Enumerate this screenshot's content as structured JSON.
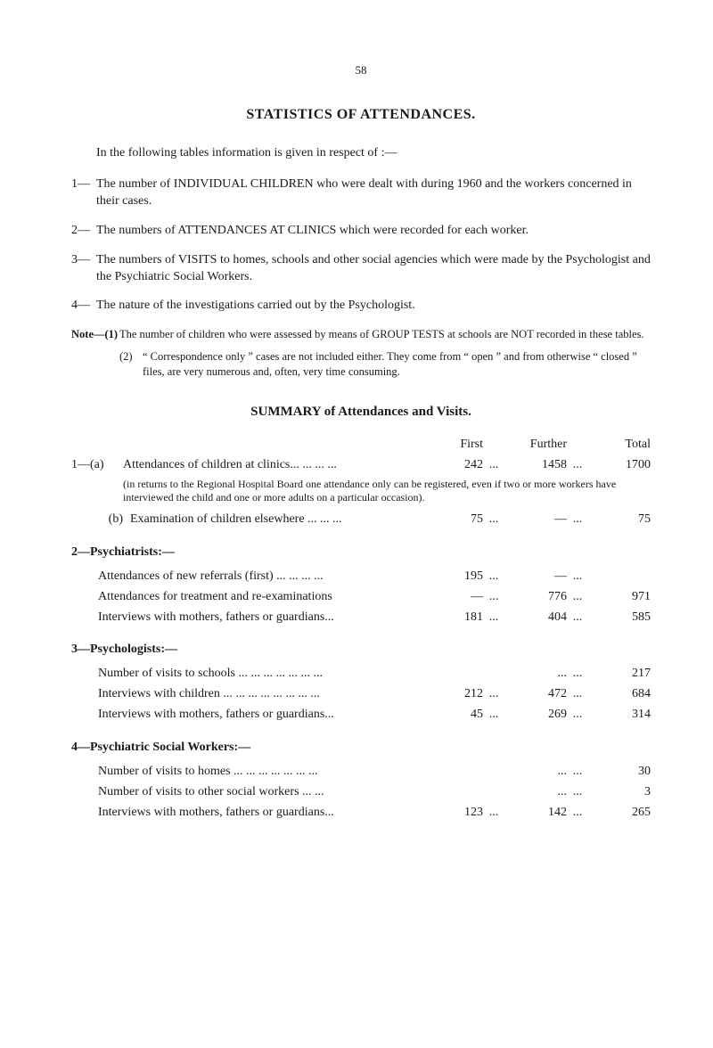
{
  "page_number": "58",
  "title": "STATISTICS OF ATTENDANCES.",
  "intro": "In the following tables information is given in respect of :—",
  "items": [
    {
      "n": "1—",
      "t": "The number of INDIVIDUAL CHILDREN who were dealt with during 1960 and the workers concerned in their cases."
    },
    {
      "n": "2—",
      "t": "The numbers of ATTENDANCES AT CLINICS which were recorded for each worker."
    },
    {
      "n": "3—",
      "t": "The numbers of VISITS to homes, schools and other social agencies which were made by the Psychologist and the Psychiatric Social Workers."
    },
    {
      "n": "4—",
      "t": "The nature of the investigations carried out by the Psychologist."
    }
  ],
  "note_label": "Note—(1)",
  "note1": "The number of children who were assessed by means of GROUP TESTS at schools are NOT recorded in these tables.",
  "note2_n": "(2)",
  "note2": "“ Correspondence only ” cases are not included either. They come from “ open ” and from otherwise “ closed ” files, are very numerous and, often, very time consuming.",
  "summary_title": "SUMMARY of Attendances and Visits.",
  "cols": {
    "first": "First",
    "further": "Further",
    "total": "Total"
  },
  "sec1": {
    "a_prefix": "1—(a)",
    "a_label": "Attendances of children at clinics... ... ... ...",
    "a_first": "242",
    "a_further": "1458",
    "a_total": "1700",
    "a_note": "(in returns to the Regional Hospital Board one attendance only can be registered, even if two or more workers have interviewed the child and one or more adults on a particular occasion).",
    "b_prefix": "(b)",
    "b_label": "Examination of children elsewhere ... ... ...",
    "b_first": "75",
    "b_further": "—",
    "b_total": "75"
  },
  "sec2": {
    "heading": "2—Psychiatrists:—",
    "r1_label": "Attendances of new referrals (first) ... ... ... ...",
    "r1_first": "195",
    "r1_further": "—",
    "r1_total": "",
    "r2_label": "Attendances for treatment and re-examinations",
    "r2_first": "—",
    "r2_further": "776",
    "r2_total": "971",
    "r3_label": "Interviews with mothers, fathers or guardians...",
    "r3_first": "181",
    "r3_further": "404",
    "r3_total": "585"
  },
  "sec3": {
    "heading": "3—Psychologists:—",
    "r1_label": "Number of visits to schools ... ... ... ... ... ... ...",
    "r1_first": "",
    "r1_further": "...",
    "r1_total": "217",
    "r2_label": "Interviews with children ... ... ... ... ... ... ... ...",
    "r2_first": "212",
    "r2_further": "472",
    "r2_total": "684",
    "r3_label": "Interviews with mothers, fathers or guardians...",
    "r3_first": "45",
    "r3_further": "269",
    "r3_total": "314"
  },
  "sec4": {
    "heading": "4—Psychiatric Social Workers:—",
    "r1_label": "Number of visits to homes ... ... ... ... ... ... ...",
    "r1_first": "",
    "r1_further": "...",
    "r1_total": "30",
    "r2_label": "Number of visits to other social workers ... ...",
    "r2_first": "",
    "r2_further": "...",
    "r2_total": "3",
    "r3_label": "Interviews with mothers, fathers or guardians...",
    "r3_first": "123",
    "r3_further": "142",
    "r3_total": "265"
  },
  "dots": "..."
}
